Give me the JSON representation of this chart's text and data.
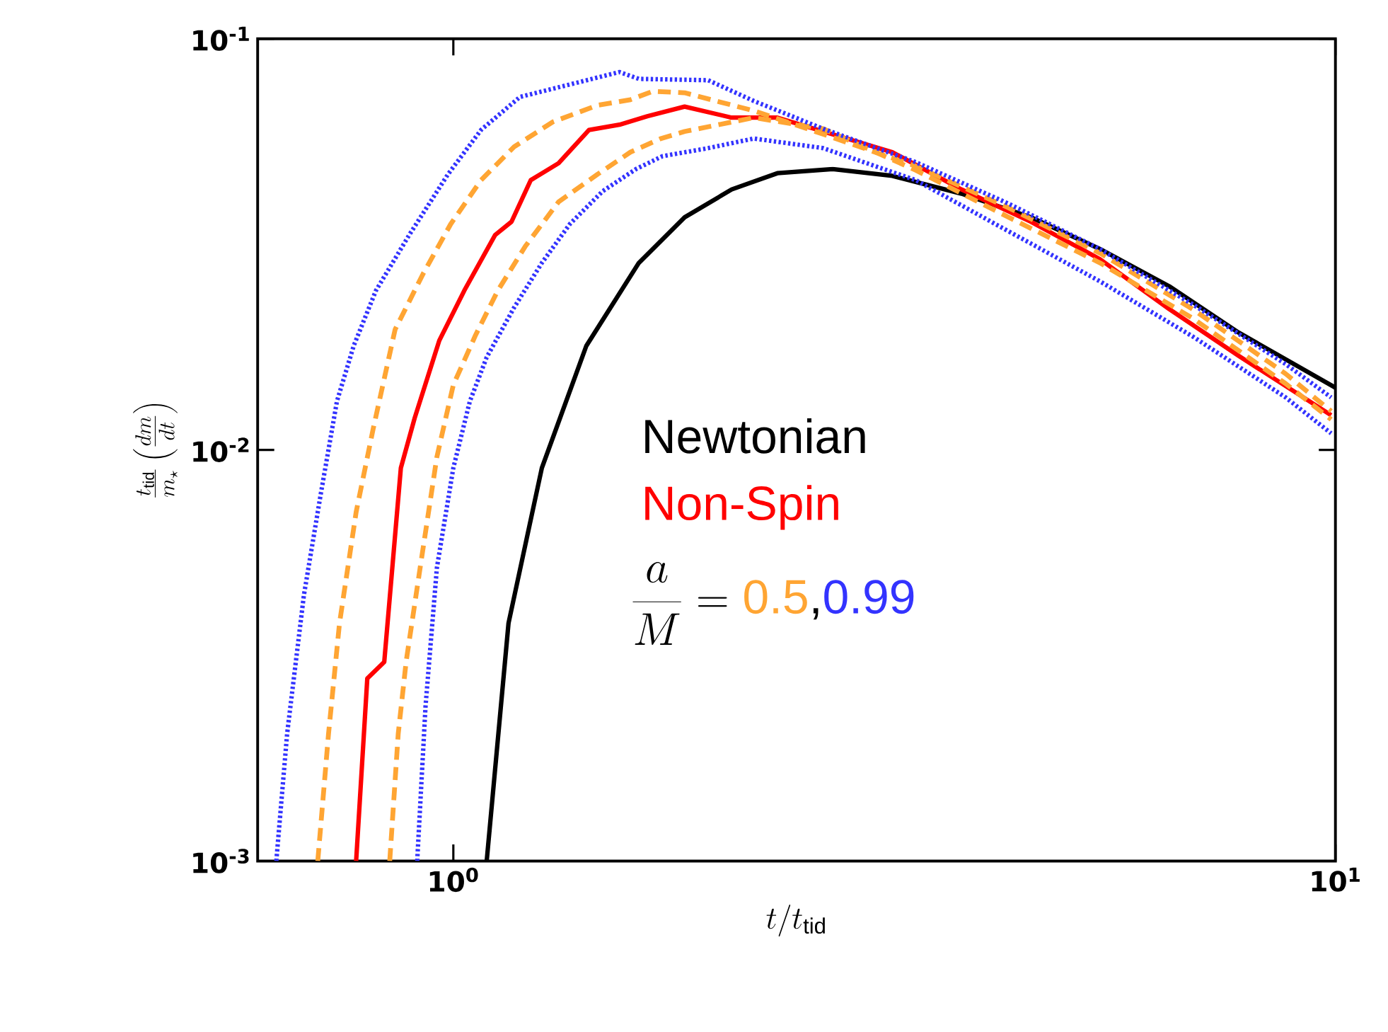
{
  "chart_data": {
    "type": "line",
    "xlabel": "t/t_{\\rm tid}",
    "ylabel": "\\frac{t_{\\rm tid}}{m_\\star}\\left(\\frac{dm}{dt}\\right)",
    "log": "xy",
    "xlim": [
      0.6,
      10
    ],
    "ylim": [
      0.001,
      0.1
    ],
    "xticks": [
      {
        "value": 1,
        "label": "10$^{0}$"
      },
      {
        "value": 10,
        "label": "10$^{1}$"
      }
    ],
    "yticks": [
      {
        "value": 0.001,
        "label": "10$^{-3}$"
      },
      {
        "value": 0.01,
        "label": "10$^{-2}$"
      },
      {
        "value": 0.1,
        "label": "10$^{-1}$"
      }
    ],
    "grid": false,
    "legend": "center",
    "marker": "none",
    "annotations": [
      "\\frac{a}{M} =",
      ","
    ],
    "series": [
      {
        "name": "Newtonian",
        "color": "#000000",
        "line_style": "solid",
        "x": [
          1.091,
          1.155,
          1.26,
          1.415,
          1.623,
          1.829,
          2.068,
          2.33,
          2.692,
          3.145,
          3.768,
          4.515,
          5.409,
          6.48,
          7.766,
          10
        ],
        "values": [
          0.001,
          0.00379,
          0.00904,
          0.0179,
          0.0285,
          0.0368,
          0.043,
          0.0471,
          0.0482,
          0.0464,
          0.042,
          0.0368,
          0.0308,
          0.025,
          0.0193,
          0.01417
        ]
      },
      {
        "name": "Non-Spin",
        "color": "#ff0000",
        "line_style": "solid",
        "x": [
          0.776,
          0.799,
          0.835,
          0.872,
          0.904,
          0.964,
          1.029,
          1.115,
          1.164,
          1.224,
          1.316,
          1.425,
          1.543,
          1.659,
          1.829,
          2.068,
          2.33,
          2.626,
          3.145,
          3.768,
          4.515,
          5.409,
          6.48,
          7.766,
          9.89
        ],
        "values": [
          0.001,
          0.00278,
          0.00305,
          0.00904,
          0.01195,
          0.01845,
          0.0244,
          0.0333,
          0.0359,
          0.0453,
          0.0498,
          0.06,
          0.0618,
          0.0648,
          0.0684,
          0.0643,
          0.0643,
          0.0595,
          0.053,
          0.043,
          0.0359,
          0.0291,
          0.022,
          0.01694,
          0.01214
        ]
      },
      {
        "name": "0.5",
        "color": "#ffa533",
        "line_style": "dashed",
        "x": [
          0.702,
          0.722,
          0.743,
          0.776,
          0.811,
          0.859,
          0.924,
          0.993,
          1.075,
          1.172,
          1.297,
          1.457,
          1.588,
          1.683,
          1.829,
          2.191,
          2.626,
          3.344,
          4.262,
          5.409,
          6.89,
          8.78,
          9.89
        ],
        "values": [
          0.001,
          0.00204,
          0.00379,
          0.00706,
          0.01123,
          0.01963,
          0.0268,
          0.0354,
          0.0453,
          0.0546,
          0.0628,
          0.0689,
          0.0711,
          0.0745,
          0.0739,
          0.0668,
          0.0586,
          0.049,
          0.0388,
          0.0301,
          0.022,
          0.01532,
          0.01242
        ]
      },
      {
        "color": "#ffa533",
        "line_style": "dashed",
        "x": [
          0.847,
          0.866,
          0.884,
          0.917,
          0.958,
          1.0,
          1.06,
          1.123,
          1.207,
          1.316,
          1.457,
          1.588,
          1.72,
          1.829,
          2.191,
          2.626,
          3.344,
          4.262,
          5.409,
          6.89,
          8.78,
          9.89
        ],
        "values": [
          0.001,
          0.00204,
          0.00305,
          0.00517,
          0.00962,
          0.01439,
          0.01904,
          0.0244,
          0.0313,
          0.0401,
          0.0468,
          0.053,
          0.0572,
          0.0595,
          0.0643,
          0.0604,
          0.0479,
          0.0368,
          0.0285,
          0.0209,
          0.0145,
          0.01186
        ]
      },
      {
        "name": "0.99",
        "color": "#3333ff",
        "line_style": "dotted",
        "x": [
          0.63,
          0.648,
          0.677,
          0.707,
          0.738,
          0.771,
          0.817,
          0.891,
          0.986,
          1.075,
          1.19,
          1.335,
          1.543,
          1.623,
          1.945,
          2.191,
          2.626,
          3.344,
          4.262,
          5.409,
          6.89,
          8.78,
          9.89
        ],
        "values": [
          0.001,
          0.00204,
          0.00443,
          0.00774,
          0.01312,
          0.0179,
          0.0244,
          0.0333,
          0.0468,
          0.06,
          0.0722,
          0.0768,
          0.083,
          0.0799,
          0.0793,
          0.0706,
          0.0604,
          0.0501,
          0.0397,
          0.0308,
          0.0226,
          0.01618,
          0.01342
        ]
      },
      {
        "color": "#3333ff",
        "line_style": "dotted",
        "x": [
          0.91,
          0.93,
          0.958,
          1.0,
          1.044,
          1.091,
          1.172,
          1.26,
          1.355,
          1.477,
          1.611,
          1.726,
          1.945,
          2.191,
          2.626,
          3.344,
          4.262,
          5.409,
          6.89,
          8.78,
          9.89
        ],
        "values": [
          0.001,
          0.00238,
          0.00517,
          0.00904,
          0.01312,
          0.0168,
          0.0222,
          0.0285,
          0.0354,
          0.0426,
          0.0482,
          0.0518,
          0.0542,
          0.0572,
          0.0542,
          0.0453,
          0.034,
          0.0257,
          0.01888,
          0.01342,
          0.01097
        ]
      }
    ]
  }
}
